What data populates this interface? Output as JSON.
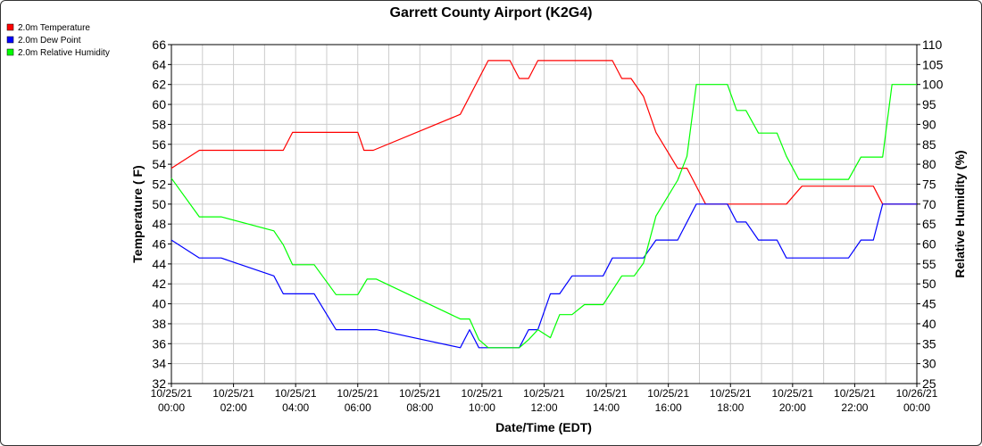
{
  "chart_data": {
    "type": "line",
    "title": "Garrett County Airport (K2G4)",
    "xlabel": "Date/Time (EDT)",
    "ylabel": "Temperature ( F)",
    "y2label": "Relative Humidity (%)",
    "ylim": [
      32,
      66
    ],
    "y2lim": [
      25,
      110
    ],
    "yticks": [
      32,
      34,
      36,
      38,
      40,
      42,
      44,
      46,
      48,
      50,
      52,
      54,
      56,
      58,
      60,
      62,
      64,
      66
    ],
    "y2ticks": [
      25,
      30,
      35,
      40,
      45,
      50,
      55,
      60,
      65,
      70,
      75,
      80,
      85,
      90,
      95,
      100,
      105,
      110
    ],
    "xlim": [
      "10/25/21 00:00",
      "10/26/21 00:00"
    ],
    "xticks": [
      {
        "hour": 0,
        "date": "10/25/21",
        "time": "00:00"
      },
      {
        "hour": 2,
        "date": "10/25/21",
        "time": "02:00"
      },
      {
        "hour": 4,
        "date": "10/25/21",
        "time": "04:00"
      },
      {
        "hour": 6,
        "date": "10/25/21",
        "time": "06:00"
      },
      {
        "hour": 8,
        "date": "10/25/21",
        "time": "08:00"
      },
      {
        "hour": 10,
        "date": "10/25/21",
        "time": "10:00"
      },
      {
        "hour": 12,
        "date": "10/25/21",
        "time": "12:00"
      },
      {
        "hour": 14,
        "date": "10/25/21",
        "time": "14:00"
      },
      {
        "hour": 16,
        "date": "10/25/21",
        "time": "16:00"
      },
      {
        "hour": 18,
        "date": "10/25/21",
        "time": "18:00"
      },
      {
        "hour": 20,
        "date": "10/25/21",
        "time": "20:00"
      },
      {
        "hour": 22,
        "date": "10/25/21",
        "time": "22:00"
      },
      {
        "hour": 24,
        "date": "10/26/21",
        "time": "00:00"
      }
    ],
    "grid": true,
    "legend_position": "top-left",
    "series": [
      {
        "name": "2.0m Temperature",
        "color": "#ff0000",
        "axis": "left",
        "points": [
          [
            0,
            53.6
          ],
          [
            0.9,
            55.4
          ],
          [
            3.6,
            55.4
          ],
          [
            3.9,
            57.2
          ],
          [
            6.0,
            57.2
          ],
          [
            6.2,
            55.4
          ],
          [
            6.5,
            55.4
          ],
          [
            9.3,
            59.0
          ],
          [
            10.2,
            64.4
          ],
          [
            10.9,
            64.4
          ],
          [
            11.2,
            62.6
          ],
          [
            11.5,
            62.6
          ],
          [
            11.8,
            64.4
          ],
          [
            14.2,
            64.4
          ],
          [
            14.5,
            62.6
          ],
          [
            14.8,
            62.6
          ],
          [
            15.2,
            60.8
          ],
          [
            15.6,
            57.2
          ],
          [
            16.3,
            53.6
          ],
          [
            16.6,
            53.6
          ],
          [
            17.2,
            50.0
          ],
          [
            19.8,
            50.0
          ],
          [
            20.3,
            51.8
          ],
          [
            22.6,
            51.8
          ],
          [
            22.9,
            50.0
          ],
          [
            24.0,
            50.0
          ]
        ]
      },
      {
        "name": "2.0m Dew Point",
        "color": "#0000ff",
        "axis": "left",
        "points": [
          [
            0,
            46.4
          ],
          [
            0.9,
            44.6
          ],
          [
            1.6,
            44.6
          ],
          [
            3.3,
            42.8
          ],
          [
            3.6,
            41.0
          ],
          [
            4.6,
            41.0
          ],
          [
            5.3,
            37.4
          ],
          [
            6.6,
            37.4
          ],
          [
            9.3,
            35.6
          ],
          [
            9.6,
            37.4
          ],
          [
            9.9,
            35.6
          ],
          [
            11.2,
            35.6
          ],
          [
            11.5,
            37.4
          ],
          [
            11.8,
            37.4
          ],
          [
            12.2,
            41.0
          ],
          [
            12.5,
            41.0
          ],
          [
            12.9,
            42.8
          ],
          [
            13.9,
            42.8
          ],
          [
            14.2,
            44.6
          ],
          [
            15.2,
            44.6
          ],
          [
            15.6,
            46.4
          ],
          [
            16.3,
            46.4
          ],
          [
            16.9,
            50.0
          ],
          [
            17.9,
            50.0
          ],
          [
            18.2,
            48.2
          ],
          [
            18.5,
            48.2
          ],
          [
            18.9,
            46.4
          ],
          [
            19.5,
            46.4
          ],
          [
            19.8,
            44.6
          ],
          [
            21.8,
            44.6
          ],
          [
            22.2,
            46.4
          ],
          [
            22.6,
            46.4
          ],
          [
            22.9,
            50.0
          ],
          [
            24.0,
            50.0
          ]
        ]
      },
      {
        "name": "2.0m Relative Humidity",
        "color": "#00ff00",
        "axis": "right",
        "points": [
          [
            0,
            76.5
          ],
          [
            0.9,
            66.8
          ],
          [
            1.6,
            66.8
          ],
          [
            3.3,
            63.3
          ],
          [
            3.6,
            59.8
          ],
          [
            3.9,
            54.8
          ],
          [
            4.6,
            54.8
          ],
          [
            5.3,
            47.3
          ],
          [
            6.0,
            47.3
          ],
          [
            6.3,
            51.2
          ],
          [
            6.6,
            51.2
          ],
          [
            9.3,
            41.2
          ],
          [
            9.6,
            41.2
          ],
          [
            9.9,
            36.0
          ],
          [
            10.2,
            34.0
          ],
          [
            11.2,
            34.0
          ],
          [
            11.5,
            36.0
          ],
          [
            11.8,
            38.5
          ],
          [
            12.2,
            36.5
          ],
          [
            12.5,
            42.3
          ],
          [
            12.9,
            42.3
          ],
          [
            13.3,
            44.8
          ],
          [
            13.9,
            44.8
          ],
          [
            14.5,
            52.0
          ],
          [
            14.9,
            52.0
          ],
          [
            15.2,
            55.2
          ],
          [
            15.6,
            67.0
          ],
          [
            16.3,
            76.0
          ],
          [
            16.6,
            82.0
          ],
          [
            16.9,
            100.0
          ],
          [
            17.9,
            100.0
          ],
          [
            18.2,
            93.5
          ],
          [
            18.5,
            93.5
          ],
          [
            18.9,
            87.8
          ],
          [
            19.5,
            87.8
          ],
          [
            19.8,
            82.0
          ],
          [
            20.2,
            76.2
          ],
          [
            21.8,
            76.2
          ],
          [
            22.2,
            81.8
          ],
          [
            22.9,
            81.8
          ],
          [
            23.2,
            100.0
          ],
          [
            24.0,
            100.0
          ]
        ]
      }
    ]
  }
}
